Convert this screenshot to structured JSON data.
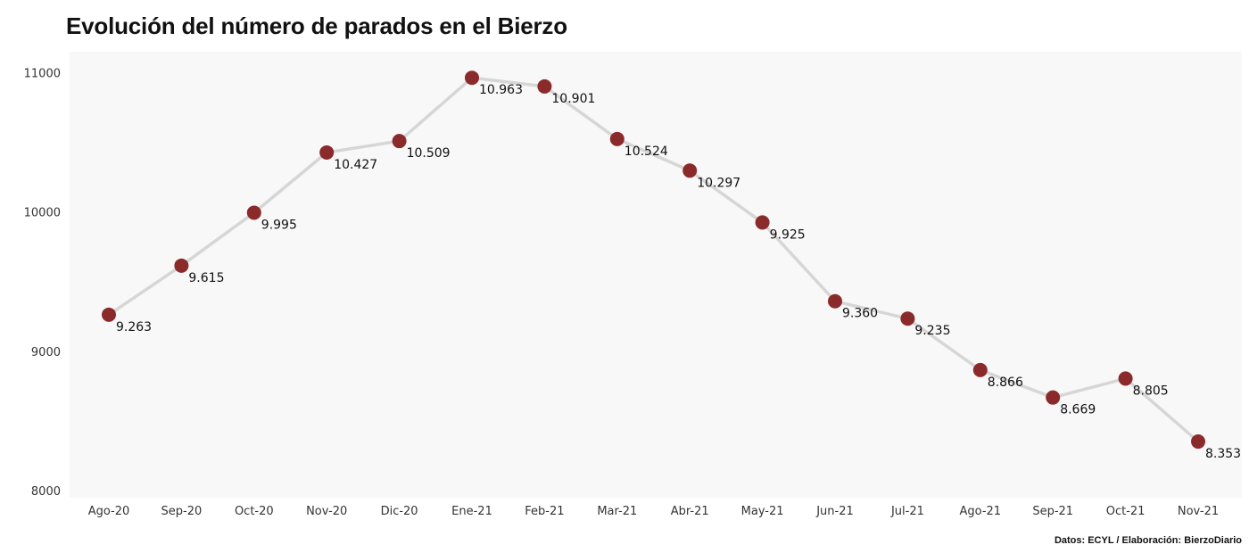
{
  "chart_data": {
    "type": "line",
    "title": "Evolución del número de parados en el Bierzo",
    "categories": [
      "Ago-20",
      "Sep-20",
      "Oct-20",
      "Nov-20",
      "Dic-20",
      "Ene-21",
      "Feb-21",
      "Mar-21",
      "Abr-21",
      "May-21",
      "Jun-21",
      "Jul-21",
      "Ago-21",
      "Sep-21",
      "Oct-21",
      "Nov-21"
    ],
    "values": [
      9263,
      9615,
      9995,
      10427,
      10509,
      10963,
      10901,
      10524,
      10297,
      9925,
      9360,
      9235,
      8866,
      8669,
      8805,
      8353
    ],
    "data_labels": [
      "9.263",
      "9.615",
      "9.995",
      "10.427",
      "10.509",
      "10.963",
      "10.901",
      "10.524",
      "10.297",
      "9.925",
      "9.360",
      "9.235",
      "8.866",
      "8.669",
      "8.805",
      "8.353"
    ],
    "y_ticks": [
      "8000",
      "9000",
      "10000",
      "11000"
    ],
    "ylim": [
      7950,
      11150
    ],
    "xlabel": "",
    "ylabel": "",
    "grid": false,
    "colors": {
      "line": "#d6d6d6",
      "marker": "#8b2a2a",
      "panel": "#f8f8f8"
    }
  },
  "source_note": "Datos: ECYL / Elaboración: BierzoDiario"
}
